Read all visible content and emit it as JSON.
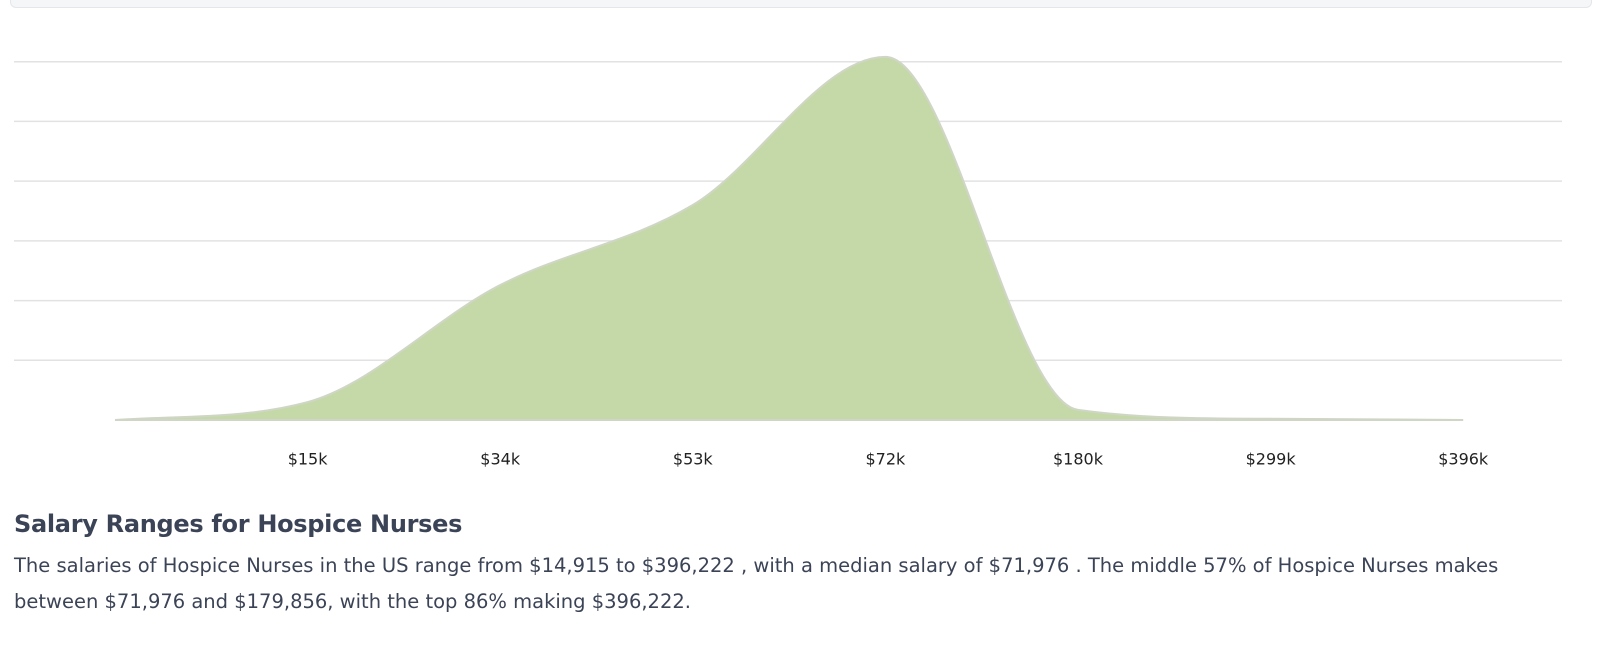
{
  "chart_data": {
    "type": "area",
    "categories": [
      null,
      "$15k",
      "$34k",
      "$53k",
      "$72k",
      "$180k",
      "$299k",
      "$396k"
    ],
    "values": [
      0,
      0.3,
      2.26,
      3.6,
      6.08,
      0.17,
      0.02,
      0
    ],
    "color": "#c5d9a8",
    "ylim": [
      0,
      7
    ],
    "yticks": [
      1,
      2,
      3,
      4,
      5,
      6
    ],
    "grid": true
  },
  "summary": {
    "title": "Salary Ranges for Hospice Nurses",
    "text": "The salaries of Hospice Nurses in the US range from $14,915 to $396,222 , with a median salary of $71,976 . The middle 57% of Hospice Nurses makes between $71,976 and $179,856, with the top 86% making $396,222."
  }
}
